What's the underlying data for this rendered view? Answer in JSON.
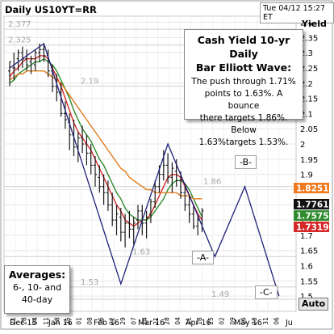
{
  "header": {
    "chart_title": "Daily US10YT=RR",
    "timestamp": "Tue 04/12 15:27 ET"
  },
  "callout": {
    "title_line1": "Cash Yield 10-yr Daily",
    "title_line2": "Bar Elliott Wave:",
    "text_line1": "The push through 1.71%",
    "text_line2": "points to 1.63%. A bounce",
    "text_line3": "there targets 1.86%. Below",
    "text_line4": "1.63%targets 1.53%."
  },
  "averages_box": {
    "title": "Averages:",
    "line1": "6-, 10- and",
    "line2": "40-day"
  },
  "wave_labels": {
    "a": "-A-",
    "b": "-B-",
    "c": "-C-"
  },
  "auto_button": "Auto",
  "colors": {
    "bars": "#1a1a1a",
    "ma6": "#d62828",
    "ma10": "#2e8b2e",
    "ma40": "#e07b1a",
    "wave": "#1f1f7a",
    "tag_orange": "#f07a20",
    "tag_black": "#111111",
    "tag_green": "#2e8b2e",
    "tag_red": "#d62828"
  },
  "chart_data": {
    "type": "line",
    "title": "Daily US10YT=RR",
    "ylabel": "Yield",
    "ylim": [
      1.45,
      2.42
    ],
    "y_ticks": [
      "2.4",
      "2.35",
      "2.3",
      "2.25",
      "2.2",
      "2.15",
      "2.1",
      "2.05",
      "2",
      "1.95",
      "1.9",
      "1.85",
      "1.8",
      "1.75",
      "1.7",
      "1.65",
      "1.6",
      "1.55",
      "1.5"
    ],
    "x_day_ticks": [
      "21",
      "28",
      "04",
      "11",
      "18",
      "25",
      "01",
      "08",
      "16",
      "22",
      "29",
      "07",
      "14",
      "21",
      "28",
      "04",
      "11",
      "18",
      "25",
      "02",
      "09",
      "16",
      "23",
      "31",
      "06"
    ],
    "x_month_labels": [
      "Dec 15",
      "Jan 16",
      "Feb 16",
      "Mar 16",
      "Apr 16",
      "May 16",
      "Ju"
    ],
    "levels": [
      {
        "value": 2.377,
        "label": "2.377"
      },
      {
        "value": 2.325,
        "label": "2.325"
      },
      {
        "value": 2.19,
        "label": "2.19"
      },
      {
        "value": 1.86,
        "label": "1.86"
      },
      {
        "value": 1.63,
        "label": "1.63"
      },
      {
        "value": 1.53,
        "label": "1.53"
      },
      {
        "value": 1.49,
        "label": "1.49"
      }
    ],
    "price_tags": [
      {
        "value": 1.8251,
        "label": "1.8251",
        "series": "40-day"
      },
      {
        "value": 1.7761,
        "label": "1.7761",
        "series": "price"
      },
      {
        "value": 1.7575,
        "label": "1.7575",
        "series": "10-day"
      },
      {
        "value": 1.7319,
        "label": "1.7319",
        "series": "6-day"
      }
    ],
    "bars": [
      [
        0,
        2.27,
        2.19,
        2.24,
        2.27
      ],
      [
        1,
        2.3,
        2.21,
        2.25,
        2.25
      ],
      [
        2,
        2.31,
        2.24,
        2.28,
        2.3
      ],
      [
        3,
        2.32,
        2.25,
        2.3,
        2.28
      ],
      [
        4,
        2.31,
        2.24,
        2.28,
        2.26
      ],
      [
        5,
        2.29,
        2.23,
        2.27,
        2.28
      ],
      [
        6,
        2.31,
        2.24,
        2.26,
        2.3
      ],
      [
        7,
        2.33,
        2.27,
        2.3,
        2.31
      ],
      [
        8,
        2.33,
        2.27,
        2.31,
        2.29
      ],
      [
        9,
        2.31,
        2.22,
        2.29,
        2.24
      ],
      [
        10,
        2.26,
        2.17,
        2.24,
        2.19
      ],
      [
        11,
        2.23,
        2.14,
        2.19,
        2.17
      ],
      [
        12,
        2.2,
        2.09,
        2.17,
        2.1
      ],
      [
        13,
        2.14,
        2.05,
        2.1,
        2.08
      ],
      [
        14,
        2.1,
        1.98,
        2.07,
        2.03
      ],
      [
        15,
        2.08,
        1.96,
        2.03,
        1.99
      ],
      [
        16,
        2.04,
        1.94,
        1.99,
        2.02
      ],
      [
        17,
        2.06,
        1.97,
        2.02,
        2.0
      ],
      [
        18,
        2.03,
        1.93,
        2.0,
        1.97
      ],
      [
        19,
        2.0,
        1.9,
        1.97,
        1.93
      ],
      [
        20,
        1.96,
        1.86,
        1.93,
        1.9
      ],
      [
        21,
        1.93,
        1.84,
        1.89,
        1.86
      ],
      [
        22,
        1.9,
        1.8,
        1.86,
        1.84
      ],
      [
        23,
        1.88,
        1.78,
        1.84,
        1.8
      ],
      [
        24,
        1.84,
        1.73,
        1.8,
        1.75
      ],
      [
        25,
        1.8,
        1.7,
        1.75,
        1.77
      ],
      [
        26,
        1.79,
        1.68,
        1.76,
        1.71
      ],
      [
        27,
        1.77,
        1.66,
        1.71,
        1.74
      ],
      [
        28,
        1.78,
        1.69,
        1.74,
        1.72
      ],
      [
        29,
        1.76,
        1.67,
        1.72,
        1.74
      ],
      [
        30,
        1.8,
        1.72,
        1.75,
        1.78
      ],
      [
        31,
        1.8,
        1.7,
        1.78,
        1.74
      ],
      [
        32,
        1.78,
        1.69,
        1.74,
        1.76
      ],
      [
        33,
        1.82,
        1.74,
        1.77,
        1.81
      ],
      [
        34,
        1.88,
        1.79,
        1.81,
        1.86
      ],
      [
        35,
        1.93,
        1.84,
        1.86,
        1.9
      ],
      [
        36,
        1.98,
        1.88,
        1.9,
        1.93
      ],
      [
        37,
        1.97,
        1.87,
        1.93,
        1.89
      ],
      [
        38,
        1.94,
        1.84,
        1.89,
        1.92
      ],
      [
        39,
        1.95,
        1.86,
        1.91,
        1.88
      ],
      [
        40,
        1.91,
        1.82,
        1.88,
        1.84
      ],
      [
        41,
        1.86,
        1.78,
        1.84,
        1.8
      ],
      [
        42,
        1.83,
        1.74,
        1.8,
        1.77
      ],
      [
        43,
        1.8,
        1.72,
        1.77,
        1.73
      ],
      [
        44,
        1.77,
        1.7,
        1.73,
        1.75
      ],
      [
        45,
        1.79,
        1.71,
        1.74,
        1.78
      ]
    ],
    "series": [
      {
        "name": "6-day",
        "values": [
          2.22,
          2.24,
          2.25,
          2.27,
          2.28,
          2.28,
          2.28,
          2.29,
          2.29,
          2.28,
          2.25,
          2.22,
          2.19,
          2.15,
          2.11,
          2.07,
          2.04,
          2.02,
          2.0,
          1.98,
          1.95,
          1.92,
          1.89,
          1.86,
          1.83,
          1.8,
          1.78,
          1.75,
          1.74,
          1.73,
          1.74,
          1.75,
          1.75,
          1.77,
          1.8,
          1.83,
          1.86,
          1.89,
          1.9,
          1.9,
          1.89,
          1.86,
          1.83,
          1.8,
          1.77,
          1.75
        ]
      },
      {
        "name": "10-day",
        "values": [
          2.2,
          2.21,
          2.23,
          2.24,
          2.25,
          2.26,
          2.27,
          2.27,
          2.28,
          2.27,
          2.26,
          2.24,
          2.21,
          2.18,
          2.15,
          2.11,
          2.08,
          2.05,
          2.03,
          2.01,
          1.98,
          1.95,
          1.93,
          1.9,
          1.87,
          1.84,
          1.82,
          1.79,
          1.77,
          1.76,
          1.75,
          1.75,
          1.75,
          1.76,
          1.78,
          1.8,
          1.82,
          1.85,
          1.87,
          1.88,
          1.88,
          1.87,
          1.85,
          1.82,
          1.79,
          1.76
        ]
      },
      {
        "name": "40-day",
        "values": [
          2.21,
          2.22,
          2.23,
          2.23,
          2.24,
          2.24,
          2.24,
          2.24,
          2.24,
          2.23,
          2.22,
          2.21,
          2.2,
          2.18,
          2.16,
          2.14,
          2.12,
          2.1,
          2.08,
          2.06,
          2.04,
          2.02,
          2.0,
          1.98,
          1.96,
          1.94,
          1.92,
          1.91,
          1.89,
          1.88,
          1.87,
          1.86,
          1.85,
          1.85,
          1.84,
          1.84,
          1.84,
          1.84,
          1.84,
          1.84,
          1.83,
          1.83,
          1.83,
          1.82,
          1.82,
          1.82
        ]
      }
    ],
    "wave_path": [
      {
        "x": 0,
        "y": 2.25
      },
      {
        "x": 8,
        "y": 2.33
      },
      {
        "x": 26,
        "y": 1.54
      },
      {
        "x": 37,
        "y": 2.0
      },
      {
        "x": 48,
        "y": 1.63
      },
      {
        "x": 55,
        "y": 1.86
      },
      {
        "x": 63,
        "y": 1.5
      }
    ]
  }
}
